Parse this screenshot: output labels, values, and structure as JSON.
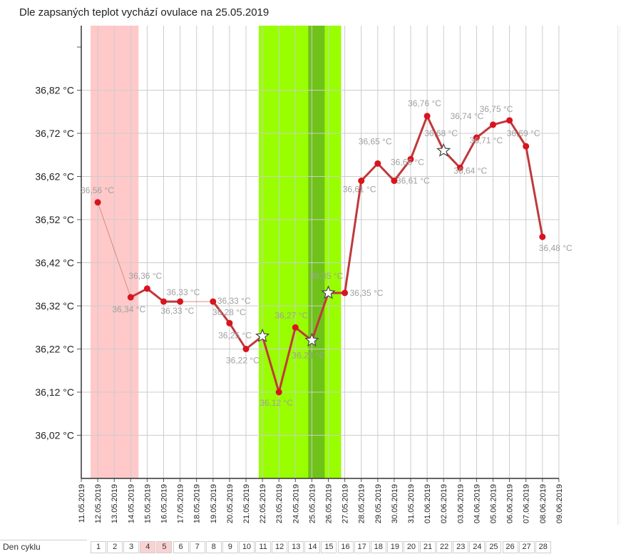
{
  "headline": "Dle zapsaných teplot vychází ovulace na 25.05.2019",
  "colors": {
    "period_band": "#ffc9c9",
    "fertile_band": "#99ff00",
    "ovulation_band": "#6fc21a",
    "line": "#c0393b",
    "point": "#d9141e",
    "data_label": "#a0a0a0",
    "grid": "#cccccc"
  },
  "chart_data": {
    "type": "line",
    "title": "",
    "xlabel": "",
    "ylabel": "",
    "ylim": [
      35.92,
      36.92
    ],
    "grid": true,
    "y_ticks": [
      {
        "value": 36.02,
        "label": "36,02 °C"
      },
      {
        "value": 36.12,
        "label": "36,12 °C"
      },
      {
        "value": 36.22,
        "label": "36,22 °C"
      },
      {
        "value": 36.32,
        "label": "36,32 °C"
      },
      {
        "value": 36.42,
        "label": "36,42 °C"
      },
      {
        "value": 36.52,
        "label": "36,52 °C"
      },
      {
        "value": 36.62,
        "label": "36,62 °C"
      },
      {
        "value": 36.72,
        "label": "36,72 °C"
      },
      {
        "value": 36.82,
        "label": "36,82 °C"
      }
    ],
    "x_ticks": [
      "11.05.2019",
      "12.05.2019",
      "13.05.2019",
      "14.05.2019",
      "15.05.2019",
      "16.05.2019",
      "17.05.2019",
      "18.05.2019",
      "19.05.2019",
      "20.05.2019",
      "21.05.2019",
      "22.05.2019",
      "23.05.2019",
      "24.05.2019",
      "25.05.2019",
      "26.05.2019",
      "27.05.2019",
      "28.05.2019",
      "29.05.2019",
      "30.05.2019",
      "31.05.2019",
      "01.06.2019",
      "02.06.2019",
      "03.06.2019",
      "04.06.2019",
      "05.06.2019",
      "06.06.2019",
      "07.06.2019",
      "08.06.2019",
      "09.06.2019"
    ],
    "bands": [
      {
        "kind": "period",
        "from": "11.05.2019",
        "to": "14.05.2019"
      },
      {
        "kind": "fertile",
        "from": "21.05.2019",
        "to": "26.05.2019"
      },
      {
        "kind": "ovulation",
        "from": "24.05.2019",
        "to": "25.05.2019"
      }
    ],
    "series": [
      {
        "points": [
          {
            "x": "12.05.2019",
            "y": 36.56,
            "label": "36,56 °C",
            "marker": "dot",
            "style": "thin"
          },
          {
            "x": "14.05.2019",
            "y": 36.34,
            "label": "36,34 °C",
            "marker": "dot",
            "style": "normal"
          },
          {
            "x": "15.05.2019",
            "y": 36.36,
            "label": "36,36 °C",
            "marker": "dot",
            "style": "normal"
          },
          {
            "x": "16.05.2019",
            "y": 36.33,
            "label": "36,33 °C",
            "marker": "dot",
            "style": "normal"
          },
          {
            "x": "17.05.2019",
            "y": 36.33,
            "label": "36,33 °C",
            "marker": "dot",
            "style": "thin"
          },
          {
            "x": "19.05.2019",
            "y": 36.33,
            "label": "36,33 °C",
            "marker": "dot",
            "style": "normal"
          },
          {
            "x": "20.05.2019",
            "y": 36.28,
            "label": "36,28 °C",
            "marker": "dot",
            "style": "normal"
          },
          {
            "x": "21.05.2019",
            "y": 36.22,
            "label": "36,22 °C",
            "marker": "dot",
            "style": "normal"
          },
          {
            "x": "22.05.2019",
            "y": 36.25,
            "label": "36,25 °C",
            "marker": "star",
            "style": "normal"
          },
          {
            "x": "23.05.2019",
            "y": 36.12,
            "label": "36,12 °C",
            "marker": "dot",
            "style": "normal"
          },
          {
            "x": "24.05.2019",
            "y": 36.27,
            "label": "36,27 °C",
            "marker": "dot",
            "style": "normal"
          },
          {
            "x": "25.05.2019",
            "y": 36.24,
            "label": "36,24 °C",
            "marker": "star",
            "style": "normal"
          },
          {
            "x": "26.05.2019",
            "y": 36.35,
            "label": "36,35 °C",
            "marker": "star",
            "style": "normal"
          },
          {
            "x": "27.05.2019",
            "y": 36.35,
            "label": "36,35 °C",
            "marker": "dot",
            "style": "normal"
          },
          {
            "x": "28.05.2019",
            "y": 36.61,
            "label": "36,61 °C",
            "marker": "dot",
            "style": "normal"
          },
          {
            "x": "29.05.2019",
            "y": 36.65,
            "label": "36,65 °C",
            "marker": "dot",
            "style": "normal"
          },
          {
            "x": "30.05.2019",
            "y": 36.61,
            "label": "36,61 °C",
            "marker": "dot",
            "style": "normal"
          },
          {
            "x": "31.05.2019",
            "y": 36.66,
            "label": "36,66 °C",
            "marker": "dot",
            "style": "normal"
          },
          {
            "x": "01.06.2019",
            "y": 36.76,
            "label": "36,76 °C",
            "marker": "dot",
            "style": "normal"
          },
          {
            "x": "02.06.2019",
            "y": 36.68,
            "label": "36,68 °C",
            "marker": "star",
            "style": "normal"
          },
          {
            "x": "03.06.2019",
            "y": 36.64,
            "label": "36,64 °C",
            "marker": "dot",
            "style": "normal"
          },
          {
            "x": "04.06.2019",
            "y": 36.71,
            "label": "36,71 °C",
            "marker": "dot",
            "style": "normal"
          },
          {
            "x": "05.06.2019",
            "y": 36.74,
            "label": "36,74 °C",
            "marker": "dot",
            "style": "normal"
          },
          {
            "x": "06.06.2019",
            "y": 36.75,
            "label": "36,75 °C",
            "marker": "dot",
            "style": "normal"
          },
          {
            "x": "07.06.2019",
            "y": 36.69,
            "label": "36,69 °C",
            "marker": "dot",
            "style": "normal"
          },
          {
            "x": "08.06.2019",
            "y": 36.48,
            "label": "36,48 °C",
            "marker": "dot",
            "style": "normal"
          }
        ]
      }
    ]
  },
  "cycle_row": {
    "label": "Den cyklu",
    "days": [
      {
        "day": "1",
        "date": "11.05.2019",
        "period": false
      },
      {
        "day": "2",
        "date": "12.05.2019",
        "period": false
      },
      {
        "day": "3",
        "date": "13.05.2019",
        "period": false
      },
      {
        "day": "4",
        "date": "14.05.2019",
        "period": true
      },
      {
        "day": "5",
        "date": "15.05.2019",
        "period": true
      },
      {
        "day": "6",
        "date": "16.05.2019",
        "period": false
      },
      {
        "day": "7",
        "date": "17.05.2019",
        "period": false
      },
      {
        "day": "8",
        "date": "18.05.2019",
        "period": false
      },
      {
        "day": "9",
        "date": "19.05.2019",
        "period": false
      },
      {
        "day": "10",
        "date": "20.05.2019",
        "period": false
      },
      {
        "day": "11",
        "date": "21.05.2019",
        "period": false
      },
      {
        "day": "12",
        "date": "22.05.2019",
        "period": false
      },
      {
        "day": "13",
        "date": "23.05.2019",
        "period": false
      },
      {
        "day": "14",
        "date": "24.05.2019",
        "period": false
      },
      {
        "day": "15",
        "date": "25.05.2019",
        "period": false
      },
      {
        "day": "16",
        "date": "26.05.2019",
        "period": false
      },
      {
        "day": "17",
        "date": "27.05.2019",
        "period": false
      },
      {
        "day": "18",
        "date": "28.05.2019",
        "period": false
      },
      {
        "day": "19",
        "date": "29.05.2019",
        "period": false
      },
      {
        "day": "20",
        "date": "30.05.2019",
        "period": false
      },
      {
        "day": "21",
        "date": "31.05.2019",
        "period": false
      },
      {
        "day": "22",
        "date": "01.06.2019",
        "period": false
      },
      {
        "day": "23",
        "date": "02.06.2019",
        "period": false
      },
      {
        "day": "24",
        "date": "03.06.2019",
        "period": false
      },
      {
        "day": "25",
        "date": "04.06.2019",
        "period": false
      },
      {
        "day": "26",
        "date": "05.06.2019",
        "period": false
      },
      {
        "day": "27",
        "date": "06.06.2019",
        "period": false
      },
      {
        "day": "28",
        "date": "07.06.2019",
        "period": false
      }
    ]
  }
}
